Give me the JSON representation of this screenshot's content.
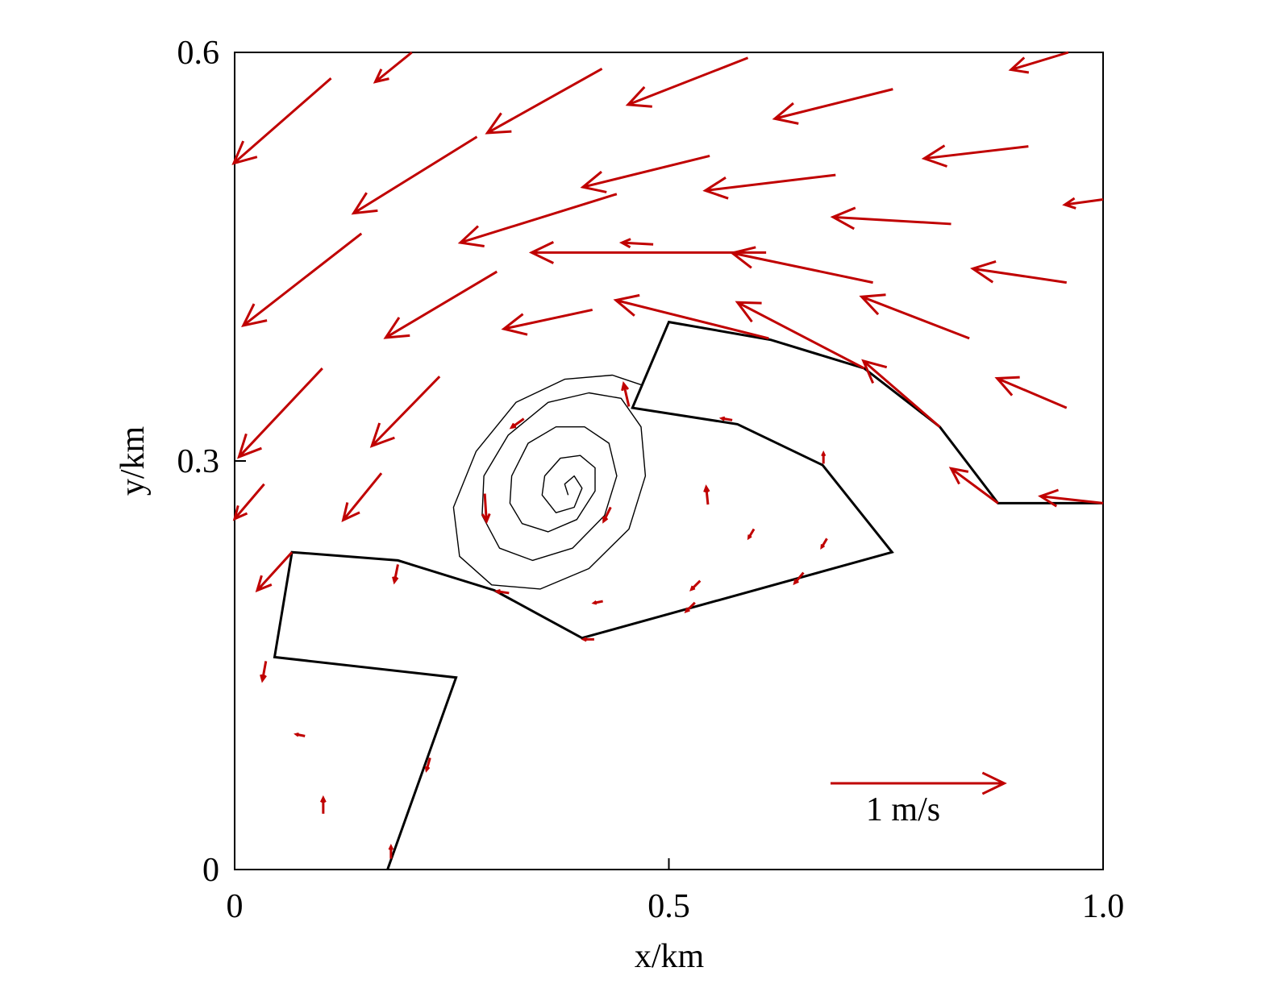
{
  "chart_data": {
    "type": "quiver",
    "xlabel": "x/km",
    "ylabel": "y/km",
    "xlim": [
      0,
      1
    ],
    "ylim": [
      0,
      0.6
    ],
    "xticks": [
      0,
      0.5,
      {
        "value": 1,
        "label": "1.0"
      }
    ],
    "yticks": [
      0,
      0.3,
      0.6
    ],
    "color": "#c00000",
    "arrows": {
      "x": [
        0.111,
        0.204,
        0.423,
        0.591,
        0.758,
        0.96,
        0.914,
        1.0,
        0.279,
        0.547,
        0.692,
        0.825,
        0.146,
        0.44,
        0.612,
        0.735,
        0.482,
        0.958,
        0.302,
        0.412,
        0.615,
        0.725,
        0.846,
        0.958,
        0.812,
        0.879,
        1.0,
        0.101,
        0.236,
        0.169,
        0.034,
        0.066,
        0.288,
        0.545,
        0.598,
        0.682,
        0.536,
        0.424,
        0.53,
        0.655,
        0.573,
        0.678,
        0.188,
        0.454,
        0.433,
        0.333,
        0.036,
        0.081,
        0.102,
        0.18,
        0.225,
        0.414,
        0.316
      ],
      "y": [
        0.581,
        0.6,
        0.588,
        0.596,
        0.573,
        0.6,
        0.531,
        0.492,
        0.538,
        0.524,
        0.51,
        0.474,
        0.467,
        0.496,
        0.453,
        0.431,
        0.459,
        0.431,
        0.439,
        0.411,
        0.39,
        0.368,
        0.39,
        0.339,
        0.325,
        0.269,
        0.269,
        0.368,
        0.362,
        0.291,
        0.283,
        0.233,
        0.276,
        0.268,
        0.25,
        0.243,
        0.212,
        0.197,
        0.196,
        0.218,
        0.33,
        0.298,
        0.224,
        0.34,
        0.266,
        0.331,
        0.153,
        0.098,
        0.041,
        0.008,
        0.082,
        0.169,
        0.203
      ],
      "u": [
        -0.56,
        -0.21,
        -0.66,
        -0.69,
        -0.68,
        -0.33,
        -0.6,
        -0.22,
        -0.71,
        -0.73,
        -0.75,
        -0.68,
        -0.68,
        -0.9,
        -1.35,
        -0.81,
        -0.18,
        -0.54,
        -0.64,
        -0.51,
        -0.88,
        -0.73,
        -0.62,
        -0.4,
        -0.44,
        -0.27,
        -0.36,
        -0.48,
        -0.39,
        -0.22,
        -0.17,
        -0.2,
        0.01,
        -0.01,
        -0.03,
        -0.03,
        -0.05,
        -0.05,
        -0.05,
        -0.05,
        -0.06,
        0,
        -0.02,
        -0.03,
        -0.04,
        -0.07,
        -0.02,
        -0.05,
        0,
        0,
        -0.02,
        -0.06,
        -0.07
      ],
      "v": [
        -0.49,
        -0.17,
        -0.37,
        -0.27,
        -0.17,
        -0.1,
        -0.07,
        -0.03,
        -0.44,
        -0.18,
        -0.09,
        0.04,
        -0.53,
        -0.28,
        0.0,
        0.17,
        0.01,
        0.08,
        -0.38,
        -0.11,
        0.22,
        0.38,
        0.24,
        0.17,
        0.38,
        0.2,
        0.04,
        -0.51,
        -0.4,
        -0.27,
        -0.2,
        -0.22,
        -0.16,
        0.1,
        -0.05,
        -0.05,
        -0.05,
        -0.01,
        -0.05,
        -0.06,
        0.01,
        0.06,
        -0.1,
        0.13,
        -0.08,
        -0.05,
        -0.11,
        0.01,
        0.09,
        0.07,
        -0.07,
        0,
        0.01
      ]
    },
    "boundary": {
      "x": [
        0.176,
        0.255,
        0.046,
        0.066,
        0.188,
        0.299,
        0.4,
        0.757,
        0.677,
        0.579,
        0.458,
        0.5,
        0.617,
        0.725,
        0.812,
        0.879,
        1.0
      ],
      "y": [
        0,
        0.141,
        0.156,
        0.233,
        0.227,
        0.205,
        0.17,
        0.233,
        0.297,
        0.327,
        0.339,
        0.402,
        0.389,
        0.368,
        0.325,
        0.269,
        0.269
      ]
    },
    "streamline": {
      "x": [
        0.468,
        0.435,
        0.38,
        0.324,
        0.278,
        0.252,
        0.259,
        0.296,
        0.352,
        0.408,
        0.454,
        0.473,
        0.468,
        0.445,
        0.408,
        0.361,
        0.315,
        0.287,
        0.285,
        0.305,
        0.343,
        0.389,
        0.426,
        0.44,
        0.431,
        0.403,
        0.37,
        0.338,
        0.319,
        0.317,
        0.331,
        0.361,
        0.394,
        0.415,
        0.415,
        0.398,
        0.375,
        0.357,
        0.354,
        0.37,
        0.391,
        0.4,
        0.391,
        0.38,
        0.384
      ],
      "y": [
        0.356,
        0.363,
        0.36,
        0.343,
        0.307,
        0.266,
        0.23,
        0.209,
        0.206,
        0.221,
        0.25,
        0.289,
        0.325,
        0.346,
        0.35,
        0.343,
        0.319,
        0.289,
        0.26,
        0.236,
        0.227,
        0.236,
        0.26,
        0.289,
        0.313,
        0.325,
        0.325,
        0.313,
        0.289,
        0.269,
        0.254,
        0.248,
        0.257,
        0.278,
        0.295,
        0.304,
        0.302,
        0.289,
        0.275,
        0.262,
        0.266,
        0.28,
        0.289,
        0.283,
        0.275
      ]
    },
    "key": {
      "value": 1,
      "label": "1 m/s"
    }
  }
}
